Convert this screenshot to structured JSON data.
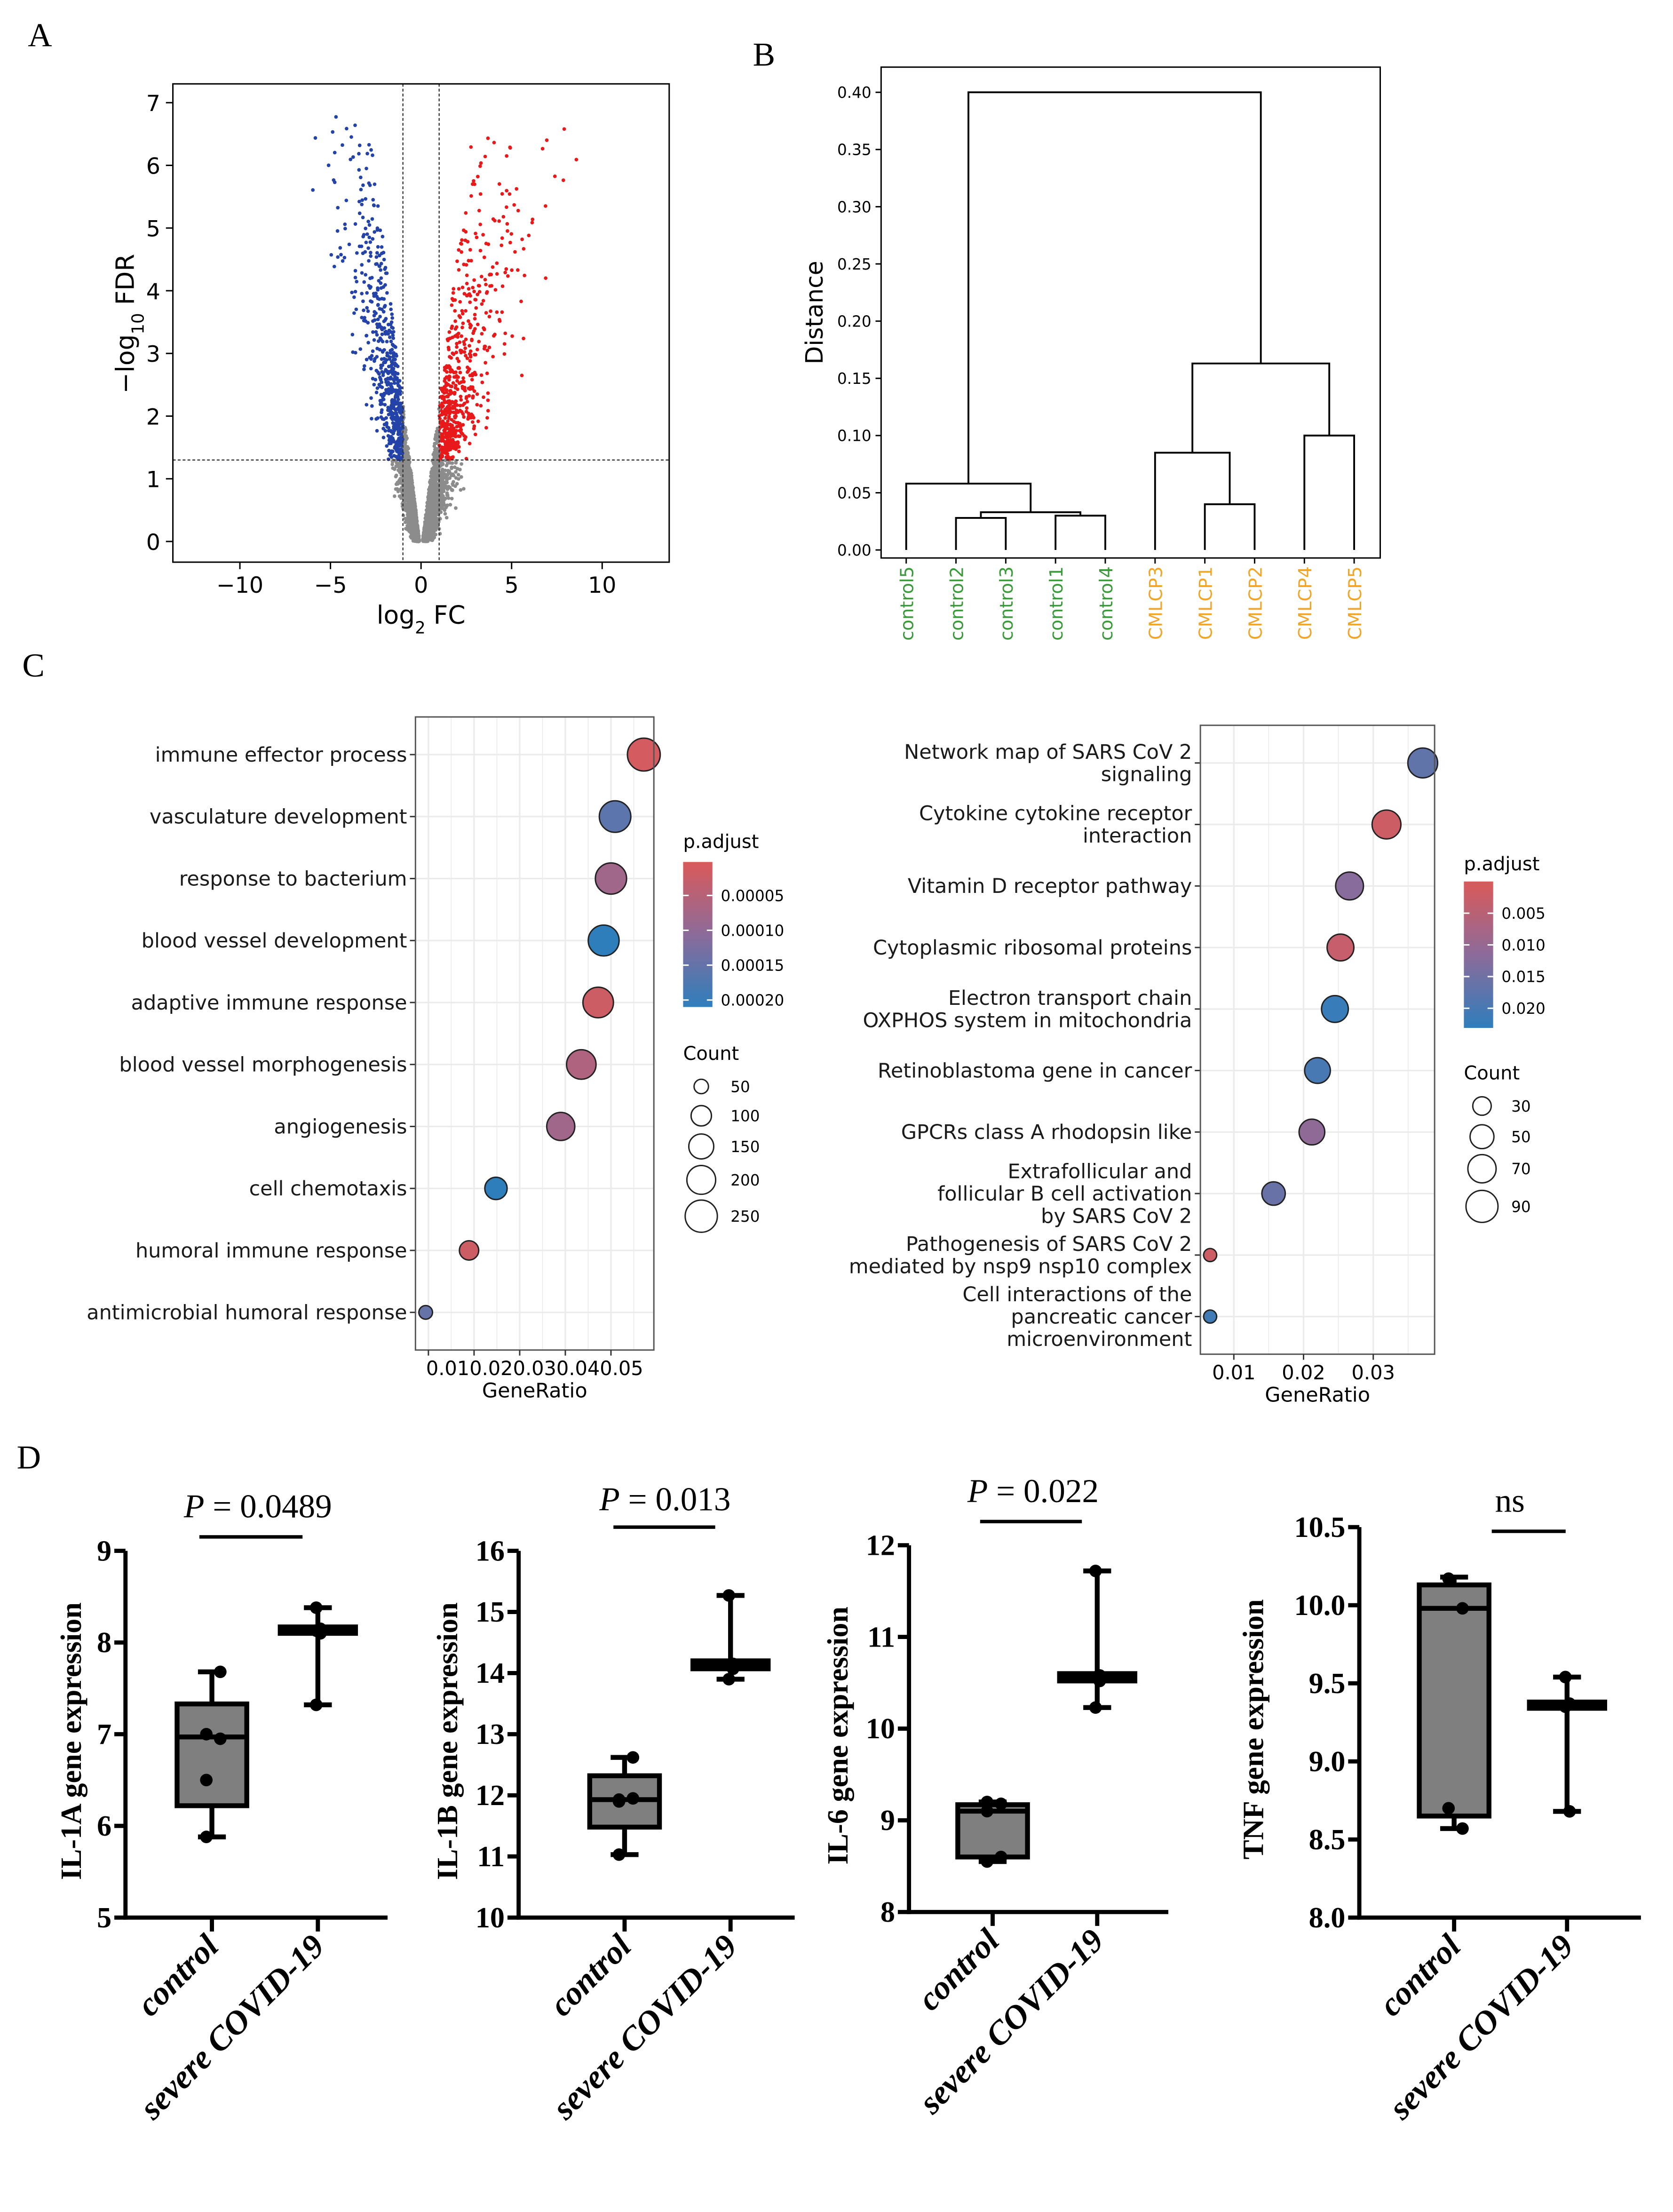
{
  "panel_labels": {
    "A": "A",
    "B": "B",
    "C": "C",
    "D": "D"
  },
  "chart_data": [
    {
      "id": "volcano",
      "type": "scatter",
      "panel": "A",
      "xlabel_parts": [
        "log",
        "2",
        " FC"
      ],
      "ylabel_parts": [
        "−log",
        "10",
        " FDR"
      ],
      "xlim": [
        -13.7,
        13.7
      ],
      "ylim": [
        -0.33,
        7.3
      ],
      "xticks": [
        -10,
        -5,
        0,
        5,
        10
      ],
      "xtick_labels": [
        "−10",
        "−5",
        "0",
        "5",
        "10"
      ],
      "yticks": [
        0,
        1,
        2,
        3,
        4,
        5,
        6,
        7
      ],
      "ytick_labels": [
        "0",
        "1",
        "2",
        "3",
        "4",
        "5",
        "6",
        "7"
      ],
      "thresholds": {
        "log2fc": [
          -1,
          1
        ],
        "neg_log10_fdr": 1.3
      },
      "point_colors": {
        "up": "#e8191b",
        "down": "#2443a8",
        "ns": "#8c8c8c"
      }
    },
    {
      "id": "dendrogram",
      "type": "dendrogram",
      "panel": "B",
      "ylabel": "Distance",
      "ylim": [
        -0.007,
        0.422
      ],
      "yticks": [
        0,
        0.05,
        0.1,
        0.15,
        0.2,
        0.25,
        0.3,
        0.35,
        0.4
      ],
      "ytick_labels": [
        "0.00",
        "0.05",
        "0.10",
        "0.15",
        "0.20",
        "0.25",
        "0.30",
        "0.35",
        "0.40"
      ],
      "leaves": [
        {
          "name": "control5",
          "group": "control"
        },
        {
          "name": "control2",
          "group": "control"
        },
        {
          "name": "control3",
          "group": "control"
        },
        {
          "name": "control1",
          "group": "control"
        },
        {
          "name": "control4",
          "group": "control"
        },
        {
          "name": "CMLCP3",
          "group": "CMLCP"
        },
        {
          "name": "CMLCP1",
          "group": "CMLCP"
        },
        {
          "name": "CMLCP2",
          "group": "CMLCP"
        },
        {
          "name": "CMLCP4",
          "group": "CMLCP"
        },
        {
          "name": "CMLCP5",
          "group": "CMLCP"
        }
      ],
      "merges": [
        {
          "id": "n1",
          "children": [
            "control2",
            "control3"
          ],
          "height": 0.028
        },
        {
          "id": "n2",
          "children": [
            "control1",
            "control4"
          ],
          "height": 0.03
        },
        {
          "id": "n3",
          "children": [
            "n1",
            "n2"
          ],
          "height": 0.033
        },
        {
          "id": "n4",
          "children": [
            "control5",
            "n3"
          ],
          "height": 0.058
        },
        {
          "id": "n5",
          "children": [
            "CMLCP1",
            "CMLCP2"
          ],
          "height": 0.04
        },
        {
          "id": "n6",
          "children": [
            "CMLCP3",
            "n5"
          ],
          "height": 0.085
        },
        {
          "id": "n7",
          "children": [
            "CMLCP4",
            "CMLCP5"
          ],
          "height": 0.1
        },
        {
          "id": "n8",
          "children": [
            "n6",
            "n7"
          ],
          "height": 0.163
        },
        {
          "id": "n9",
          "children": [
            "n4",
            "n8"
          ],
          "height": 0.4
        }
      ],
      "group_colors": {
        "control": "#3a9a3a",
        "CMLCP": "#f0a526"
      }
    },
    {
      "id": "go-dotplot",
      "type": "scatter",
      "panel": "C-left",
      "xlabel": "GeneRatio",
      "xlim": [
        0.00716,
        0.0594
      ],
      "xticks": [
        0.01,
        0.02,
        0.03,
        0.04,
        0.05
      ],
      "xtick_labels": [
        "0.01",
        "0.02",
        "0.03",
        "0.04",
        "0.05"
      ],
      "xtick_label_joined": "0.010.020.030.040.05",
      "terms": [
        {
          "label": [
            "immune effector process"
          ],
          "gene_ratio": 0.0572,
          "p_adjust": 1e-05,
          "count": 260
        },
        {
          "label": [
            "vasculature development"
          ],
          "gene_ratio": 0.0509,
          "p_adjust": 0.00016,
          "count": 240
        },
        {
          "label": [
            "response to bacterium"
          ],
          "gene_ratio": 0.05,
          "p_adjust": 8e-05,
          "count": 235
        },
        {
          "label": [
            "blood vessel development"
          ],
          "gene_ratio": 0.0484,
          "p_adjust": 0.00021,
          "count": 230
        },
        {
          "label": [
            "adaptive immune response"
          ],
          "gene_ratio": 0.0472,
          "p_adjust": 2e-05,
          "count": 225
        },
        {
          "label": [
            "blood vessel morphogenesis"
          ],
          "gene_ratio": 0.0435,
          "p_adjust": 6e-05,
          "count": 210
        },
        {
          "label": [
            "angiogenesis"
          ],
          "gene_ratio": 0.039,
          "p_adjust": 8e-05,
          "count": 190
        },
        {
          "label": [
            "cell chemotaxis"
          ],
          "gene_ratio": 0.0248,
          "p_adjust": 0.00021,
          "count": 120
        },
        {
          "label": [
            "humoral immune response"
          ],
          "gene_ratio": 0.0189,
          "p_adjust": 2e-05,
          "count": 90
        },
        {
          "label": [
            "antimicrobial humoral response"
          ],
          "gene_ratio": 0.0094,
          "p_adjust": 0.00015,
          "count": 45
        }
      ],
      "color_legend": {
        "title": "p.adjust",
        "range": [
          2e-06,
          0.00021
        ],
        "ticks": [
          5e-05,
          0.0001,
          0.00015,
          0.0002
        ],
        "tick_labels": [
          "0.00005",
          "0.00010",
          "0.00015",
          "0.00020"
        ]
      },
      "size_legend": {
        "title": "Count",
        "values": [
          50,
          100,
          150,
          200,
          250
        ],
        "labels": [
          "50",
          "100",
          "150",
          "200",
          "250"
        ]
      },
      "size_scale": 0.73
    },
    {
      "id": "pathway-dotplot",
      "type": "scatter",
      "panel": "C-right",
      "xlabel": "GeneRatio",
      "xlim": [
        0.0052,
        0.0388
      ],
      "xticks": [
        0.01,
        0.02,
        0.03
      ],
      "xtick_labels": [
        "0.01",
        "0.02",
        "0.03"
      ],
      "terms": [
        {
          "label": [
            "Network map of SARS CoV 2",
            "signaling"
          ],
          "gene_ratio": 0.0371,
          "p_adjust": 0.017,
          "count": 78
        },
        {
          "label": [
            "Cytokine cytokine receptor",
            "interaction"
          ],
          "gene_ratio": 0.0319,
          "p_adjust": 0.002,
          "count": 73
        },
        {
          "label": [
            "Vitamin D receptor pathway"
          ],
          "gene_ratio": 0.0266,
          "p_adjust": 0.012,
          "count": 68
        },
        {
          "label": [
            "Cytoplasmic ribosomal proteins"
          ],
          "gene_ratio": 0.0253,
          "p_adjust": 0.003,
          "count": 63
        },
        {
          "label": [
            "Electron transport chain",
            "OXPHOS system in mitochondria"
          ],
          "gene_ratio": 0.0245,
          "p_adjust": 0.022,
          "count": 63
        },
        {
          "label": [
            "Retinoblastoma gene in cancer"
          ],
          "gene_ratio": 0.022,
          "p_adjust": 0.02,
          "count": 58
        },
        {
          "label": [
            "GPCRs class A rhodopsin like"
          ],
          "gene_ratio": 0.0212,
          "p_adjust": 0.011,
          "count": 58
        },
        {
          "label": [
            "Extrafollicular and",
            "follicular B cell activation",
            "by SARS CoV 2"
          ],
          "gene_ratio": 0.0157,
          "p_adjust": 0.016,
          "count": 48
        },
        {
          "label": [
            "Pathogenesis of SARS CoV 2",
            "mediated by nsp9 nsp10 complex"
          ],
          "gene_ratio": 0.0066,
          "p_adjust": 0.002,
          "count": 15
        },
        {
          "label": [
            "Cell interactions of the",
            "pancreatic cancer",
            "microenvironment"
          ],
          "gene_ratio": 0.0066,
          "p_adjust": 0.021,
          "count": 15
        }
      ],
      "color_legend": {
        "title": "p.adjust",
        "range": [
          0.0,
          0.0231
        ],
        "ticks": [
          0.005,
          0.01,
          0.015,
          0.02
        ],
        "tick_labels": [
          "0.005",
          "0.010",
          "0.015",
          "0.020"
        ]
      },
      "size_legend": {
        "title": "Count",
        "values": [
          30,
          50,
          70,
          90
        ],
        "labels": [
          "30",
          "50",
          "70",
          "90"
        ]
      },
      "size_scale": 1.21
    },
    {
      "id": "il1a-box",
      "type": "box",
      "panel": "D1",
      "ylabel": "IL-1A gene expression",
      "ylim": [
        5,
        9
      ],
      "yticks": [
        5,
        6,
        7,
        8,
        9
      ],
      "ytick_labels": [
        "5",
        "6",
        "7",
        "8",
        "9"
      ],
      "significance": {
        "prefix": "P",
        "text": " = 0.0489"
      },
      "groups": [
        {
          "name": "control",
          "min": 5.88,
          "q1": 6.22,
          "median": 6.97,
          "q3": 7.33,
          "max": 7.68,
          "points": [
            7.0,
            6.95,
            6.5,
            7.68,
            5.88
          ]
        },
        {
          "name": "severe COVID-19",
          "min": 7.32,
          "q1": 8.1,
          "median": 8.13,
          "q3": 8.17,
          "max": 8.38,
          "points": [
            8.38,
            8.15,
            8.13,
            8.1,
            7.32
          ]
        }
      ]
    },
    {
      "id": "il1b-box",
      "type": "box",
      "panel": "D2",
      "ylabel": "IL-1B gene expression",
      "ylim": [
        10,
        16
      ],
      "yticks": [
        10,
        11,
        12,
        13,
        14,
        15,
        16
      ],
      "ytick_labels": [
        "10",
        "11",
        "12",
        "13",
        "14",
        "15",
        "16"
      ],
      "significance": {
        "prefix": "P",
        "text": " = 0.013"
      },
      "groups": [
        {
          "name": "control",
          "min": 11.03,
          "q1": 11.48,
          "median": 11.93,
          "q3": 12.32,
          "max": 12.62,
          "points": [
            11.93,
            11.95,
            11.9,
            12.62,
            11.03
          ]
        },
        {
          "name": "severe COVID-19",
          "min": 13.9,
          "q1": 14.07,
          "median": 14.13,
          "q3": 14.2,
          "max": 15.27,
          "points": [
            15.27,
            14.15,
            14.13,
            14.07,
            13.9
          ]
        }
      ]
    },
    {
      "id": "il6-box",
      "type": "box",
      "panel": "D3",
      "ylabel": "IL-6 gene expression",
      "ylim": [
        8,
        12
      ],
      "yticks": [
        8,
        9,
        10,
        11,
        12
      ],
      "ytick_labels": [
        "8",
        "9",
        "10",
        "11",
        "12"
      ],
      "significance": {
        "prefix": "P",
        "text": " = 0.022"
      },
      "groups": [
        {
          "name": "control",
          "min": 8.55,
          "q1": 8.6,
          "median": 9.1,
          "q3": 9.17,
          "max": 9.2,
          "points": [
            9.2,
            9.18,
            9.1,
            8.6,
            8.55
          ]
        },
        {
          "name": "severe COVID-19",
          "min": 10.23,
          "q1": 10.52,
          "median": 10.56,
          "q3": 10.6,
          "max": 11.72,
          "points": [
            11.72,
            10.58,
            10.56,
            10.52,
            10.23
          ]
        }
      ]
    },
    {
      "id": "tnf-box",
      "type": "box",
      "panel": "D4",
      "ylabel": "TNF gene expression",
      "ylim": [
        8,
        10.5
      ],
      "yticks": [
        8,
        8.5,
        9,
        9.5,
        10,
        10.5
      ],
      "ytick_labels": [
        "8.0",
        "8.5",
        "9.0",
        "9.5",
        "10.0",
        "10.5"
      ],
      "significance": {
        "prefix": "",
        "text": "ns"
      },
      "groups": [
        {
          "name": "control",
          "min": 8.57,
          "q1": 8.65,
          "median": 9.98,
          "q3": 10.13,
          "max": 10.18,
          "points": [
            10.17,
            9.98,
            8.7,
            8.57
          ]
        },
        {
          "name": "severe COVID-19",
          "min": 8.68,
          "q1": 9.34,
          "median": 9.36,
          "q3": 9.38,
          "max": 9.54,
          "points": [
            9.54,
            9.37,
            9.35,
            8.68
          ]
        }
      ]
    }
  ]
}
